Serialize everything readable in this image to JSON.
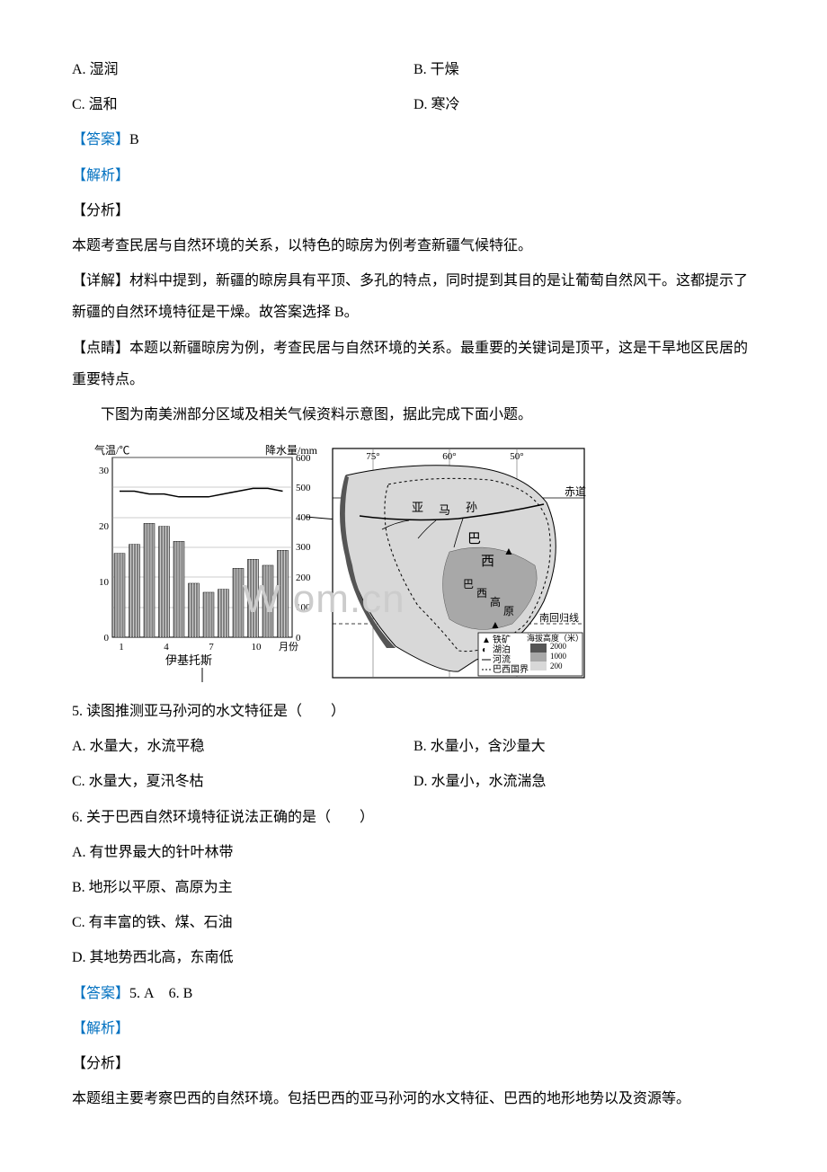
{
  "q4": {
    "options": {
      "A": "A. 湿润",
      "B": "B. 干燥",
      "C": "C. 温和",
      "D": "D. 寒冷"
    },
    "answer_label": "【答案】",
    "answer_value": "B",
    "analysis_label": "【解析】",
    "section_label": "【分析】",
    "analysis_intro": "本题考查民居与自然环境的关系，以特色的晾房为例考查新疆气候特征。",
    "detail_label": "【详解】",
    "detail_text": "材料中提到，新疆的晾房具有平顶、多孔的特点，同时提到其目的是让葡萄自然风干。这都提示了新疆的自然环境特征是干燥。故答案选择 B。",
    "point_label": "【点睛】",
    "point_text": "本题以新疆晾房为例，考查民居与自然环境的关系。最重要的关键词是顶平，这是干旱地区民居的重要特点。"
  },
  "stem56": "下图为南美洲部分区域及相关气候资料示意图，据此完成下面小题。",
  "chart": {
    "type": "bar+line",
    "left_axis_label": "气温/℃",
    "right_axis_label": "降水量/mm",
    "x_label": "月份",
    "x_ticks": [
      "1",
      "4",
      "7",
      "10"
    ],
    "y_left_ticks": [
      0,
      10,
      20,
      30
    ],
    "y_right_ticks": [
      0,
      100,
      200,
      300,
      400,
      500,
      600
    ],
    "y_left_lim": [
      0,
      32
    ],
    "y_right_lim": [
      0,
      600
    ],
    "bars": [
      280,
      310,
      380,
      370,
      320,
      180,
      150,
      160,
      230,
      260,
      240,
      290
    ],
    "line": [
      26,
      26,
      25.5,
      25.5,
      25,
      25,
      25,
      25.5,
      26,
      26.5,
      26.5,
      26
    ],
    "bar_color": "#808080",
    "bar_hatch": "vertical",
    "line_color": "#000000",
    "grid_color": "#999999",
    "background_color": "#ffffff",
    "city_label": "伊基托斯",
    "city_label_fontsize": 13
  },
  "map": {
    "lon_lines": [
      "75°",
      "60°",
      "50°"
    ],
    "equator_label": "赤道",
    "tropic_label": "南回归线",
    "rivers_label_1": "亚",
    "rivers_label_2": "马",
    "rivers_label_3": "孙",
    "country_label_chars": [
      "巴",
      "西"
    ],
    "plateau_chars": [
      "巴",
      "西",
      "高",
      "原"
    ],
    "legend": {
      "iron": "铁矿",
      "lake": "湖泊",
      "river": "河流",
      "border": "巴西国界",
      "elev_label": "海拔高度（米）",
      "elev_values": [
        "2000",
        "1000",
        "200"
      ]
    },
    "iron_symbol": "▲",
    "land_color": "#d8d8d8",
    "highland_color": "#a8a8a8",
    "ocean_color": "#ffffff",
    "border_color": "#000000"
  },
  "watermark": "W       om.cn",
  "q5": {
    "stem": "5. 读图推测亚马孙河的水文特征是（　　）",
    "options": {
      "A": "A. 水量大，水流平稳",
      "B": "B. 水量小，含沙量大",
      "C": "C. 水量大，夏汛冬枯",
      "D": "D. 水量小，水流湍急"
    }
  },
  "q6": {
    "stem": "6. 关于巴西自然环境特征说法正确的是（　　）",
    "options": {
      "A": "A. 有世界最大的针叶林带",
      "B": "B. 地形以平原、高原为主",
      "C": "C. 有丰富的铁、煤、石油",
      "D": "D. 其地势西北高，东南低"
    }
  },
  "answers56": {
    "label": "【答案】",
    "a5": "5. A",
    "a6": "6. B"
  },
  "analysis56": {
    "label": "【解析】",
    "section_label": "【分析】",
    "text": "本题组主要考察巴西的自然环境。包括巴西的亚马孙河的水文特征、巴西的地形地势以及资源等。"
  },
  "colors": {
    "text": "#000000",
    "link": "#0070c0",
    "watermark": "#cccccc"
  }
}
